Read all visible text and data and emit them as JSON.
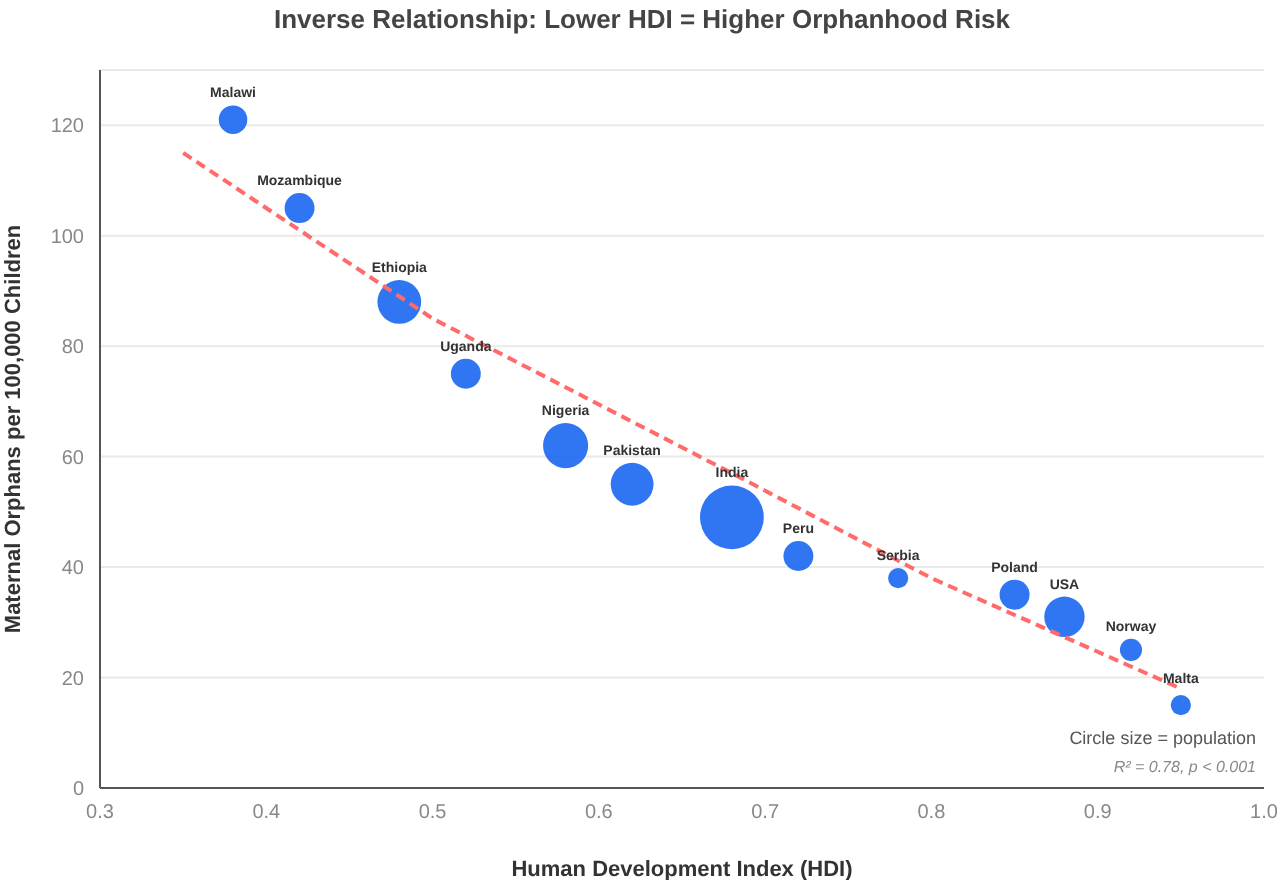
{
  "chart_data": {
    "type": "bubble",
    "title": "Inverse Relationship: Lower HDI = Higher Orphanhood Risk",
    "xlabel": "Human Development Index (HDI)",
    "ylabel": "Maternal Orphans per 100,000 Children",
    "xlim": [
      0.3,
      1.0
    ],
    "xticks": [
      0.3,
      0.4,
      0.5,
      0.6,
      0.7,
      0.8,
      0.9,
      {
        "value": 1.0,
        "label": "1.0"
      }
    ],
    "ylim": [
      0,
      130
    ],
    "yticks": [
      0,
      20,
      40,
      60,
      80,
      100,
      120
    ],
    "grid": "y",
    "annotations": [
      "Circle size = population",
      "R² = 0.78, p < 0.001"
    ],
    "series": [
      {
        "color": "#1a66f0",
        "x": [
          0.38,
          0.42,
          0.48,
          0.52,
          0.58,
          0.62,
          0.68,
          0.72,
          0.78,
          0.85,
          0.88,
          0.92,
          0.95
        ],
        "values": [
          121,
          105,
          88,
          75,
          62,
          55,
          49,
          42,
          38,
          35,
          31,
          25,
          15
        ],
        "sizes": [
          0.2,
          0.22,
          0.47,
          0.22,
          0.5,
          0.45,
          1,
          0.22,
          0.1,
          0.22,
          0.4,
          0.12,
          0.1
        ],
        "value_labels": [
          "Malawi",
          "Mozambique",
          "Ethiopia",
          "Uganda",
          "Nigeria",
          "Pakistan",
          "India",
          "Peru",
          "Serbia",
          "Poland",
          "USA",
          "Norway",
          "Malta"
        ]
      },
      {
        "type": "line",
        "color": "#ff6b6b",
        "line_style": "dashed",
        "x": [
          0.35,
          0.5,
          0.68,
          0.8,
          0.95
        ],
        "values": [
          115,
          85,
          57,
          38,
          18
        ]
      }
    ]
  }
}
